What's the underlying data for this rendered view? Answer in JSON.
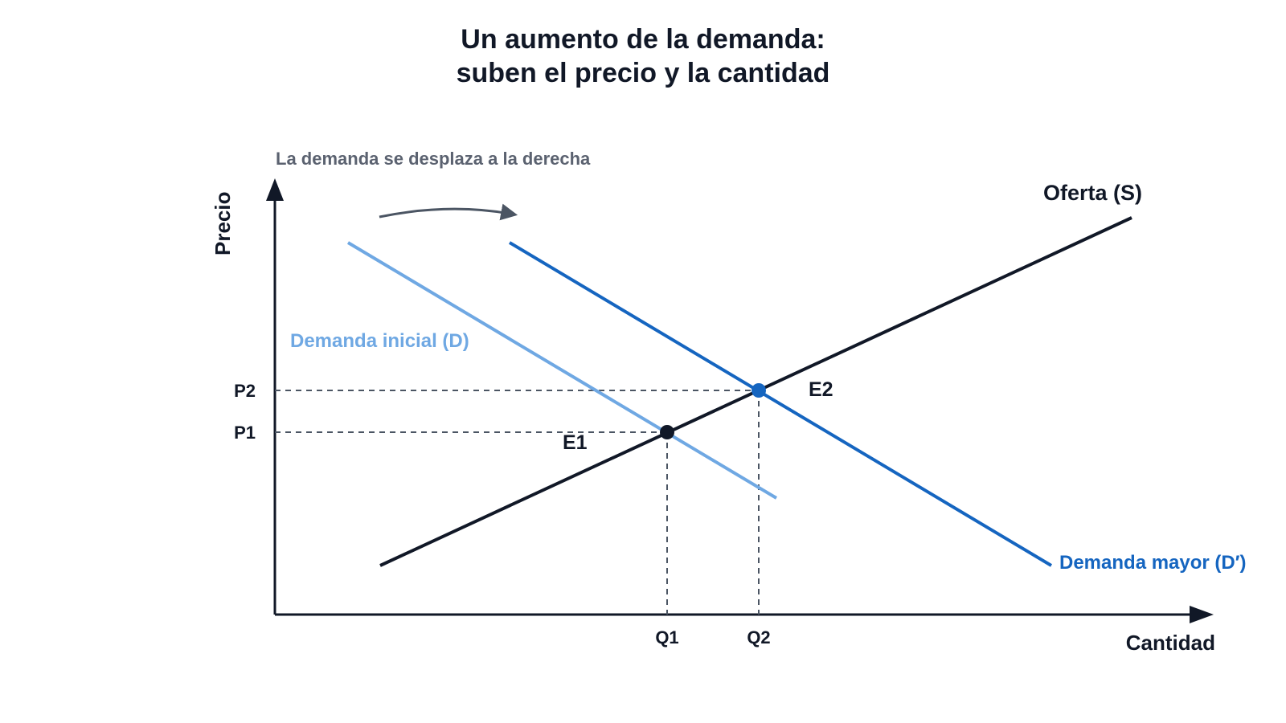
{
  "title": {
    "line1": "Un aumento de la demanda:",
    "line2": "suben el precio y la cantidad"
  },
  "shift_note": "La demanda se desplaza a la derecha",
  "axes": {
    "y_label": "Precio",
    "x_label": "Cantidad"
  },
  "curves": {
    "supply_label": "Oferta (S)",
    "demand_initial_label": "Demanda inicial (D)",
    "demand_new_label": "Demanda mayor (D′)"
  },
  "equilibria": {
    "e1_label": "E1",
    "e2_label": "E2"
  },
  "ticks": {
    "p1": "P1",
    "p2": "P2",
    "q1": "Q1",
    "q2": "Q2"
  },
  "colors": {
    "supply": "#111827",
    "demand_initial": "#6fa8e3",
    "demand_new": "#1565c0",
    "guide": "#4b5563",
    "shift_arrow": "#4b5563",
    "e1_point": "#111827",
    "e2_point": "#1565c0"
  }
}
